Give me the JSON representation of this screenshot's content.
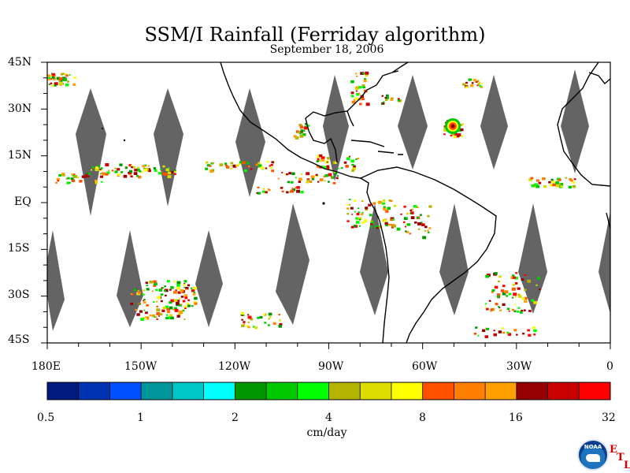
{
  "title": "SSM/I Rainfall (Ferriday algorithm)",
  "subtitle": "September 18, 2006",
  "lat_labels": [
    "45N",
    "30N",
    "15N",
    "EQ",
    "15S",
    "30S",
    "45S"
  ],
  "lon_labels": [
    "180E",
    "150W",
    "120W",
    "90W",
    "60W",
    "30W",
    "0"
  ],
  "colorbar": {
    "units": "cm/day",
    "tick_labels": [
      "0.5",
      "1",
      "2",
      "4",
      "8",
      "16",
      "32"
    ],
    "colors": [
      "#001a80",
      "#0033b4",
      "#0050ff",
      "#00969c",
      "#00c8c8",
      "#00ffff",
      "#009600",
      "#00c800",
      "#00ff00",
      "#b4b400",
      "#dcdc00",
      "#ffff00",
      "#ff5000",
      "#ff8000",
      "#ffa000",
      "#960000",
      "#c80000",
      "#ff0000"
    ]
  },
  "map": {
    "lat_range": [
      -45,
      45
    ],
    "lon_range": [
      -180,
      0
    ],
    "no_data_color": "#646464",
    "coastline_color": "#000000"
  },
  "logo": {
    "text": "NOAA",
    "letters": [
      "E",
      "T",
      "L"
    ]
  }
}
